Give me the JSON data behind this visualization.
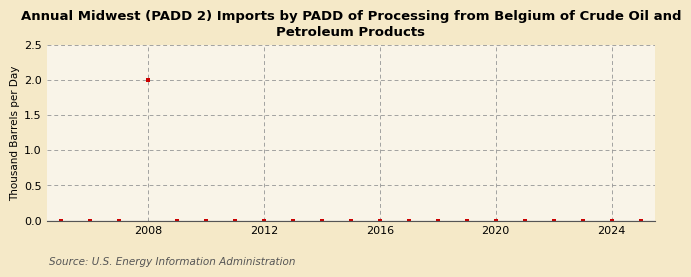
{
  "title": "Annual Midwest (PADD 2) Imports by PADD of Processing from Belgium of Crude Oil and\nPetroleum Products",
  "ylabel": "Thousand Barrels per Day",
  "source": "Source: U.S. Energy Information Administration",
  "background_color": "#f5e9c8",
  "plot_bg_color": "#f9f4e8",
  "xlim": [
    2004.5,
    2025.5
  ],
  "ylim": [
    0.0,
    2.5
  ],
  "yticks": [
    0.0,
    0.5,
    1.0,
    1.5,
    2.0,
    2.5
  ],
  "xticks": [
    2008,
    2012,
    2016,
    2020,
    2024
  ],
  "data_years": [
    2005,
    2006,
    2007,
    2008,
    2009,
    2010,
    2011,
    2012,
    2013,
    2014,
    2015,
    2016,
    2017,
    2018,
    2019,
    2020,
    2021,
    2022,
    2023,
    2024,
    2025
  ],
  "data_values": [
    0.0,
    0.0,
    0.0,
    2.0,
    0.0,
    0.0,
    0.0,
    0.0,
    0.0,
    0.0,
    0.0,
    0.0,
    0.0,
    0.0,
    0.0,
    0.0,
    0.0,
    0.0,
    0.0,
    0.0,
    0.0
  ],
  "marker_color": "#cc0000",
  "title_fontsize": 9.5,
  "axis_fontsize": 7.5,
  "tick_fontsize": 8.0,
  "source_fontsize": 7.5
}
